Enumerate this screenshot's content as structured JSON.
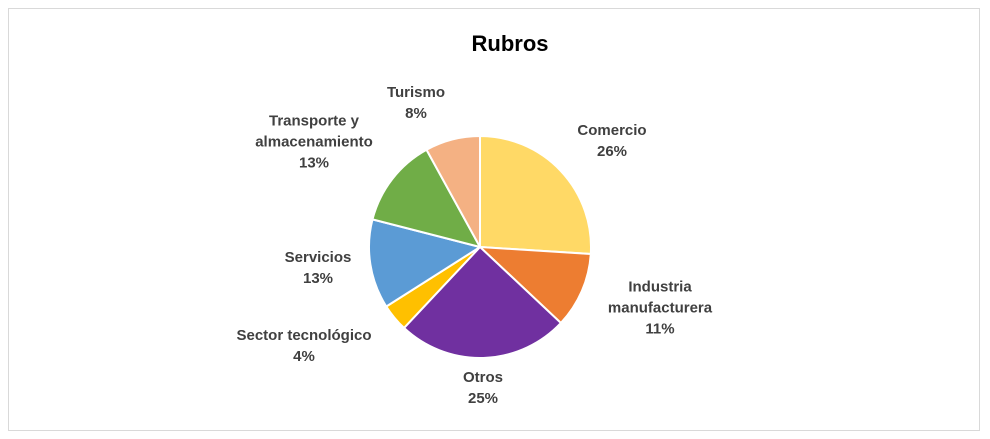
{
  "chart_data": {
    "type": "pie",
    "title": "Rubros",
    "categories": [
      "Comercio",
      "Industria manufacturera",
      "Otros",
      "Sector tecnológico",
      "Servicios",
      "Transporte y almacenamiento",
      "Turismo"
    ],
    "values": [
      26,
      11,
      25,
      4,
      13,
      13,
      8
    ],
    "value_labels": [
      "26%",
      "11%",
      "25%",
      "4%",
      "13%",
      "13%",
      "8%"
    ],
    "colors": [
      "#ffd966",
      "#ed7d31",
      "#7030a0",
      "#ffc000",
      "#5b9bd5",
      "#70ad47",
      "#f4b183"
    ]
  }
}
